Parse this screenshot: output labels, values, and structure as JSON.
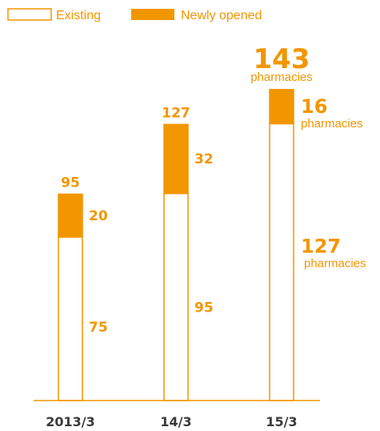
{
  "colors": {
    "accent": "#f29600",
    "existing_fill": "#ffffff",
    "tick_text": "#3a3a3a"
  },
  "legend": {
    "existing_label": "Existing",
    "new_label": "Newly opened"
  },
  "chart_data": {
    "type": "bar",
    "stacked": true,
    "categories": [
      "2013/3",
      "14/3",
      "15/3"
    ],
    "series": [
      {
        "name": "Existing",
        "values": [
          75,
          95,
          127
        ]
      },
      {
        "name": "Newly opened",
        "values": [
          20,
          32,
          16
        ]
      }
    ],
    "totals": [
      95,
      127,
      143
    ],
    "unit": "pharmacies",
    "ylim": [
      0,
      150
    ],
    "grid": false,
    "legend_position": "top-left"
  }
}
